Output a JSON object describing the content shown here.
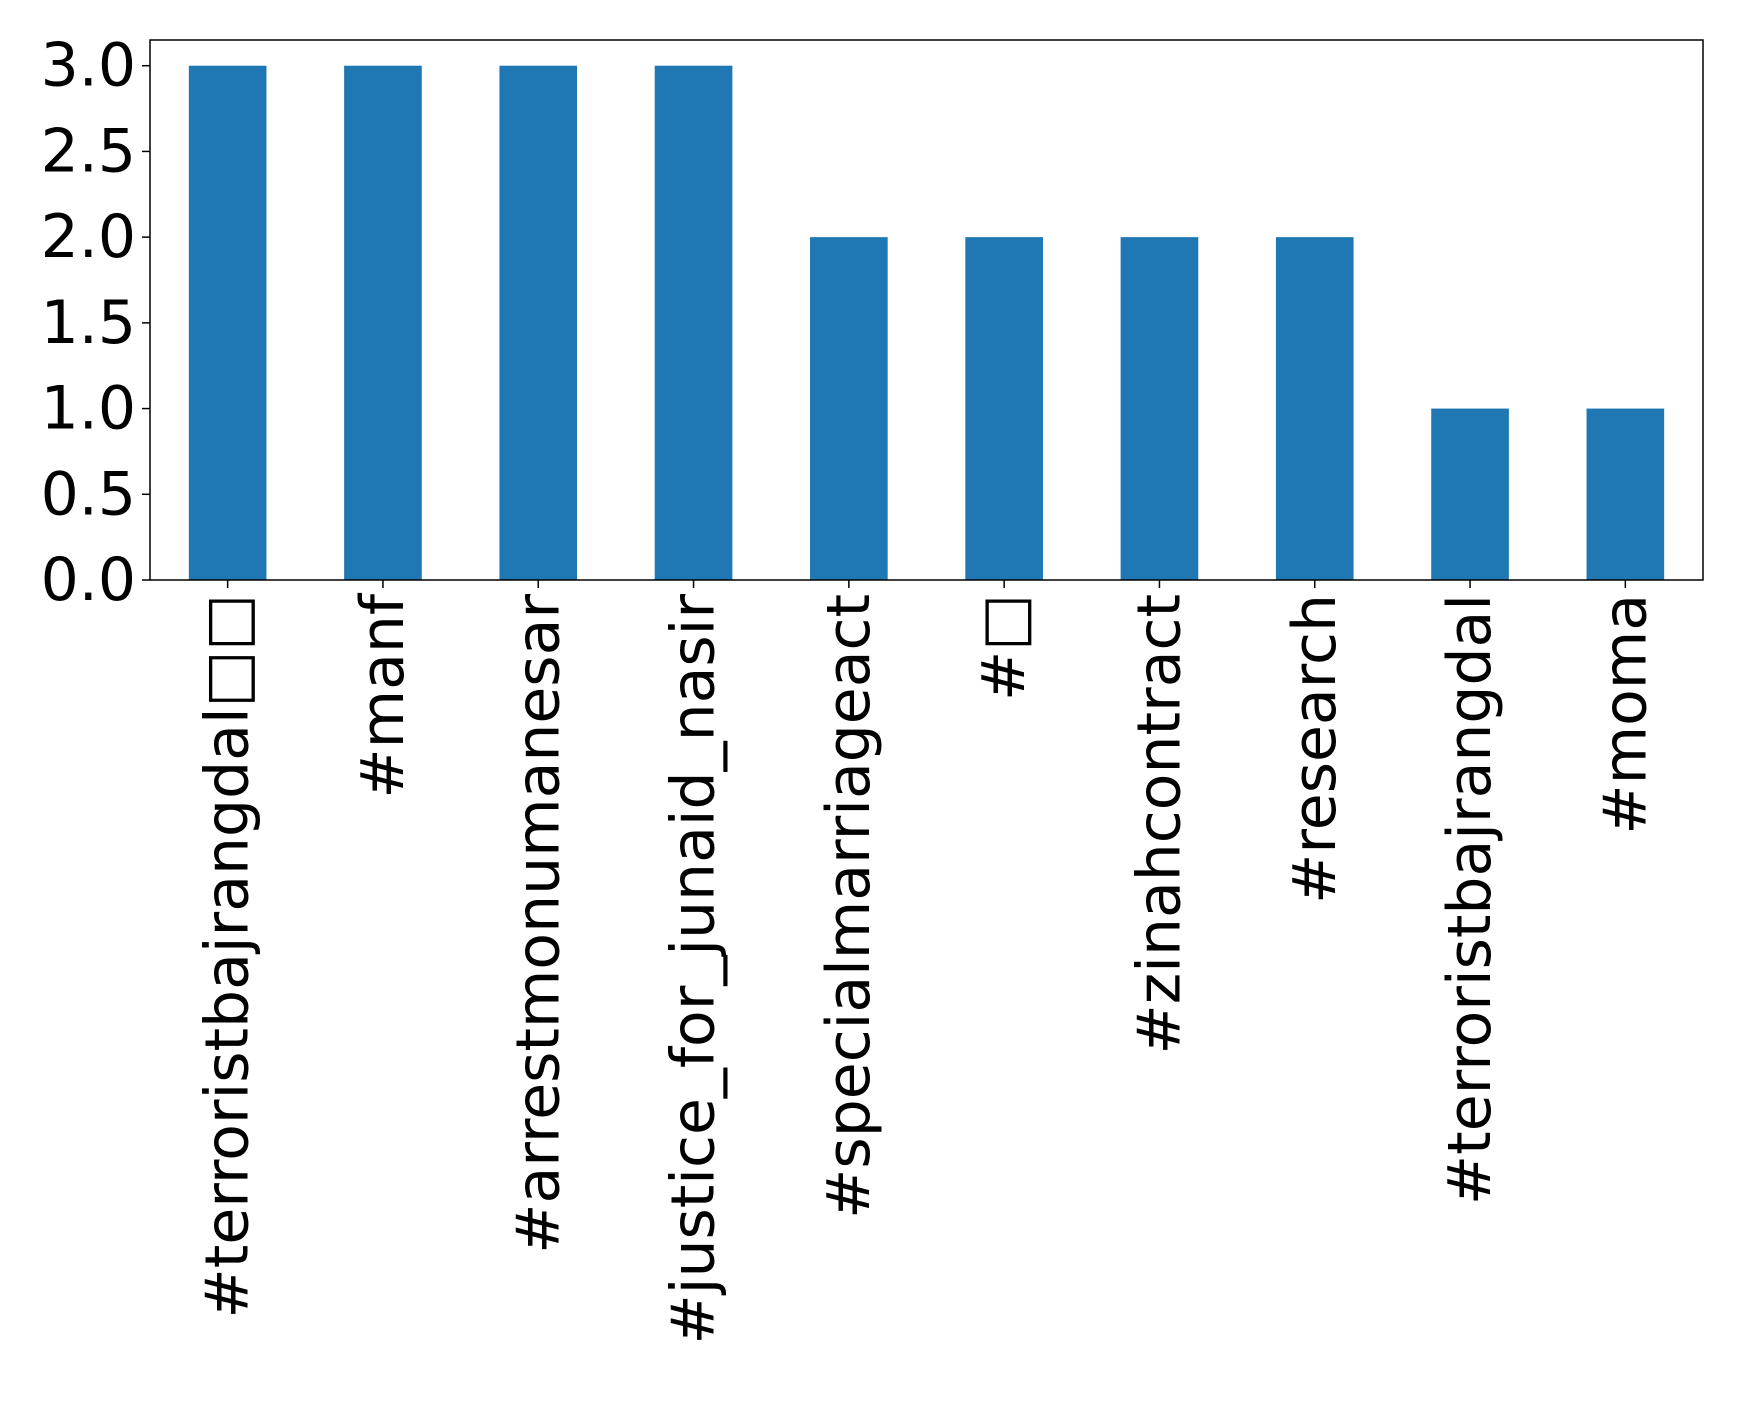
{
  "chart_data": {
    "type": "bar",
    "title": "",
    "xlabel": "",
    "ylabel": "",
    "categories": [
      "#terroristbajrangdal□□",
      "#manf",
      "#arrestmonumanesar",
      "#justice_for_junaid_nasir",
      "#specialmarriageact",
      "#□",
      "#zinahcontract",
      "#research",
      "#terroristbajrangdal",
      "#moma"
    ],
    "values": [
      3,
      3,
      3,
      3,
      2,
      2,
      2,
      2,
      1,
      1
    ],
    "ylim": [
      0,
      3.15
    ],
    "yticks": [
      0.0,
      0.5,
      1.0,
      1.5,
      2.0,
      2.5,
      3.0
    ],
    "ytick_labels": [
      "0.0",
      "0.5",
      "1.0",
      "1.5",
      "2.0",
      "2.5",
      "3.0"
    ],
    "bar_color": "#1f77b4",
    "grid": false,
    "legend": "none",
    "x_tick_rotation": "vertical"
  }
}
